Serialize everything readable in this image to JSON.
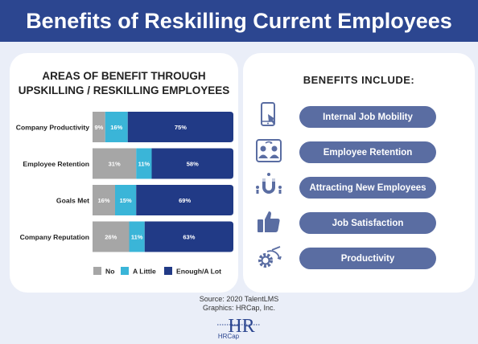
{
  "header": {
    "title": "Benefits of Reskilling Current Employees"
  },
  "chart_data": {
    "type": "bar",
    "orientation": "horizontal",
    "stacked": true,
    "title_lines": [
      "AREAS OF BENEFIT THROUGH",
      "UPSKILLING / RESKILLING EMPLOYEES"
    ],
    "categories": [
      "Company Productivity",
      "Employee Retention",
      "Goals Met",
      "Company Reputation"
    ],
    "series": [
      {
        "name": "No",
        "color": "#a6a6a6",
        "values": [
          9,
          31,
          16,
          26
        ]
      },
      {
        "name": "A Little",
        "color": "#3ab5d8",
        "values": [
          16,
          11,
          15,
          11
        ]
      },
      {
        "name": "Enough/A Lot",
        "color": "#213a86",
        "values": [
          75,
          58,
          69,
          63
        ]
      }
    ],
    "data_label_suffix": "%",
    "xlim": [
      0,
      100
    ],
    "legend": "bottom"
  },
  "benefits": {
    "title": "BENEFITS INCLUDE:",
    "items": [
      {
        "label": "Internal Job Mobility",
        "icon": "phone-touch-icon"
      },
      {
        "label": "Employee Retention",
        "icon": "team-exchange-icon"
      },
      {
        "label": "Attracting New Employees",
        "icon": "magnet-people-icon"
      },
      {
        "label": "Job Satisfaction",
        "icon": "thumbs-up-icon"
      },
      {
        "label": "Productivity",
        "icon": "gear-arrow-icon"
      }
    ]
  },
  "footer": {
    "source": "Source: 2020 TalentLMS",
    "graphics": "Graphics: HRCap, Inc.",
    "logo_text": "HRCap",
    "logo_mark": "HR"
  },
  "colors": {
    "header": "#2c4690",
    "pill": "#5a6da2",
    "icon": "#5a6da2",
    "background": "#eaeef8"
  }
}
